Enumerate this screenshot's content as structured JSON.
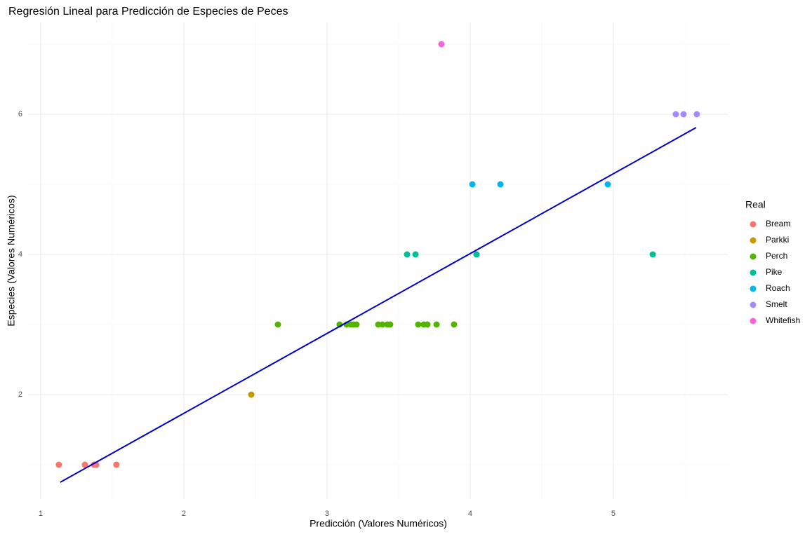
{
  "chart_data": {
    "type": "scatter",
    "title": "Regresión Lineal para Predicción de Especies de Peces",
    "x_label": "Predicción (Valores Numéricos)",
    "y_label": "Especies (Valores Numéricos)",
    "legend_title": "Real",
    "legend_position": "right",
    "grid": true,
    "xlim": [
      0.912,
      5.804
    ],
    "xticks": [
      1,
      2,
      3,
      4,
      5
    ],
    "ylim": [
      0.51,
      7.31
    ],
    "yticks": [
      2,
      4,
      6
    ],
    "series": [
      {
        "name": "Bream",
        "color": "#F8766D",
        "x": [
          1.127,
          1.309,
          1.373,
          1.387,
          1.529
        ],
        "values": [
          1,
          1,
          1,
          1,
          1
        ]
      },
      {
        "name": "Parkki",
        "color": "#C49A00",
        "x": [
          2.471
        ],
        "values": [
          2
        ]
      },
      {
        "name": "Perch",
        "color": "#53B400",
        "x": [
          2.657,
          3.088,
          3.137,
          3.167,
          3.186,
          3.206,
          3.358,
          3.387,
          3.422,
          3.441,
          3.637,
          3.676,
          3.701,
          3.765,
          3.887
        ],
        "values": [
          3,
          3,
          3,
          3,
          3,
          3,
          3,
          3,
          3,
          3,
          3,
          3,
          3,
          3,
          3
        ]
      },
      {
        "name": "Pike",
        "color": "#00C094",
        "x": [
          3.559,
          3.618,
          4.044,
          5.275
        ],
        "values": [
          4,
          4,
          4,
          4
        ]
      },
      {
        "name": "Roach",
        "color": "#00B6EB",
        "x": [
          4.015,
          4.211,
          4.961
        ],
        "values": [
          5,
          5,
          5
        ]
      },
      {
        "name": "Smelt",
        "color": "#A58AFF",
        "x": [
          5.436,
          5.49,
          5.583
        ],
        "values": [
          6,
          6,
          6
        ]
      },
      {
        "name": "Whitefish",
        "color": "#FB61D7",
        "x": [
          3.799
        ],
        "values": [
          7
        ]
      }
    ],
    "fit_line": {
      "color": "#0000CD",
      "x": [
        1.137,
        5.578
      ],
      "values": [
        0.75,
        5.81
      ]
    }
  }
}
